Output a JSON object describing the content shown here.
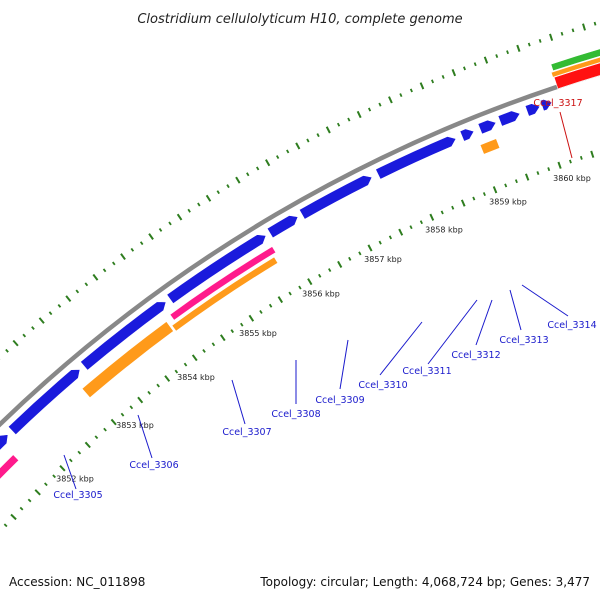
{
  "title": "Clostridium cellulolyticum H10, complete genome",
  "footer": {
    "accession": "Accession: NC_011898",
    "summary": "Topology: circular; Length: 4,068,724 bp; Genes: 3,477"
  },
  "colors": {
    "backbone": "#888888",
    "tick": "#2e7d1f",
    "gene_forward": "#1a1adc",
    "gene_label": "#1a1acc",
    "highlight_label": "#cc1111",
    "orange": "#ff9a1a",
    "pink": "#ff1a8c",
    "green": "#33bb33",
    "red": "#ff1111"
  },
  "ticks": [
    {
      "label": "3852 kbp"
    },
    {
      "label": "3853 kbp"
    },
    {
      "label": "3854 kbp"
    },
    {
      "label": "3855 kbp"
    },
    {
      "label": "3856 kbp"
    },
    {
      "label": "3857 kbp"
    },
    {
      "label": "3858 kbp"
    },
    {
      "label": "3859 kbp"
    },
    {
      "label": "3860 kbp"
    }
  ],
  "gene_labels": [
    {
      "label": "Ccel_3305"
    },
    {
      "label": "Ccel_3306"
    },
    {
      "label": "Ccel_3307"
    },
    {
      "label": "Ccel_3308"
    },
    {
      "label": "Ccel_3309"
    },
    {
      "label": "Ccel_3310"
    },
    {
      "label": "Ccel_3311"
    },
    {
      "label": "Ccel_3312"
    },
    {
      "label": "Ccel_3313"
    },
    {
      "label": "Ccel_3314"
    },
    {
      "label": "Ccel_3317"
    }
  ]
}
